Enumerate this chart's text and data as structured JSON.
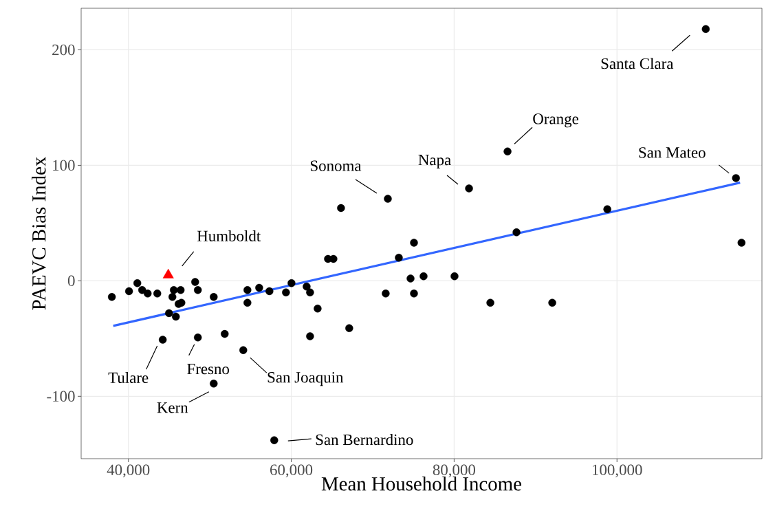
{
  "chart_data": {
    "type": "scatter",
    "xlabel": "Mean Household Income",
    "ylabel": "PAEVC Bias Index",
    "xlim": [
      34200,
      117800
    ],
    "ylim": [
      -154,
      236
    ],
    "xticks": [
      {
        "value": 40000,
        "label": "40,000"
      },
      {
        "value": 60000,
        "label": "60,000"
      },
      {
        "value": 80000,
        "label": "80,000"
      },
      {
        "value": 100000,
        "label": "100,000"
      }
    ],
    "yticks": [
      -100,
      0,
      100,
      200
    ],
    "grid": true,
    "series": [
      {
        "color": "#000000",
        "marker": "circle",
        "x": [
          37970,
          40080,
          41100,
          41690,
          42370,
          43550,
          45580,
          46420,
          45410,
          46170,
          46510,
          44990,
          45830,
          44220,
          48200,
          48530,
          50480,
          48530,
          51830,
          54110,
          50480,
          54620,
          54620,
          56060,
          57320,
          59350,
          60030,
          61890,
          62310,
          63240,
          62310,
          57910,
          64510,
          65180,
          66110,
          71860,
          75070,
          73210,
          74650,
          76250,
          80050,
          71600,
          75070,
          84450,
          92050,
          81830,
          87660,
          67120,
          110900,
          86560,
          114610,
          98810,
          115290
        ],
        "values": [
          -14,
          -9,
          -2,
          -8,
          -11,
          -11,
          -8,
          -8,
          -14,
          -20,
          -19,
          -28,
          -31,
          -51,
          -1,
          -8,
          -14,
          -49,
          -46,
          -60,
          -89,
          -8,
          -19,
          -6,
          -9,
          -10,
          -2,
          -5,
          -10,
          -24,
          -48,
          -138,
          19,
          19,
          63,
          71,
          33,
          20,
          2,
          4,
          4,
          -11,
          -11,
          -19,
          -19,
          80,
          42,
          -41,
          218,
          112,
          89,
          62,
          33
        ]
      },
      {
        "color": "#ff0000",
        "marker": "triangle",
        "x": [
          44900
        ],
        "values": [
          5
        ]
      },
      {
        "type": "line",
        "color": "#3366ff",
        "marker": "none",
        "x": [
          38140,
          115120
        ],
        "values": [
          -39,
          85
        ]
      }
    ],
    "annotations": [
      {
        "text": "Santa Clara",
        "x": 110900,
        "y": 218
      },
      {
        "text": "Orange",
        "x": 86560,
        "y": 112
      },
      {
        "text": "San Mateo",
        "x": 114610,
        "y": 89
      },
      {
        "text": "Napa",
        "x": 81830,
        "y": 80
      },
      {
        "text": "Sonoma",
        "x": 71860,
        "y": 71
      },
      {
        "text": "Humboldt",
        "x": 44900,
        "y": 5
      },
      {
        "text": "Tulare",
        "x": 44220,
        "y": -51
      },
      {
        "text": "Fresno",
        "x": 48530,
        "y": -49
      },
      {
        "text": "San Joaquin",
        "x": 54110,
        "y": -60
      },
      {
        "text": "Kern",
        "x": 50480,
        "y": -89
      },
      {
        "text": "San Bernardino",
        "x": 57910,
        "y": -138
      }
    ]
  }
}
